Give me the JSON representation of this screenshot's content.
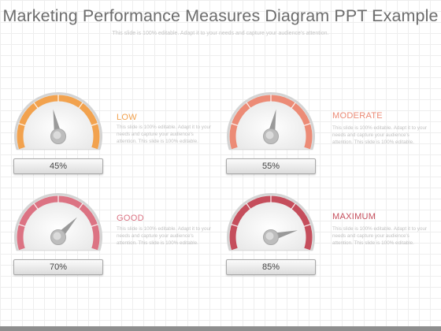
{
  "title": "Marketing Performance Measures Diagram PPT Example",
  "subtitle": "This slide is 100% editable. Adapt it to your needs and capture your audience's attention.",
  "gauges": [
    {
      "label": "LOW",
      "value": 45,
      "value_text": "45%",
      "color": "#f2a24e",
      "needle_color": "#9a9a9a",
      "description": "This slide is 100% editable. Adapt it to your needs and capture your audience's attention. This slide is 100% editable."
    },
    {
      "label": "MODERATE",
      "value": 55,
      "value_text": "55%",
      "color": "#ec8b76",
      "needle_color": "#9a9a9a",
      "description": "This slide is 100% editable. Adapt it to your needs and capture your audience's attention. This slide is 100% editable."
    },
    {
      "label": "GOOD",
      "value": 70,
      "value_text": "70%",
      "color": "#dc7383",
      "needle_color": "#9a9a9a",
      "description": "This slide is 100% editable. Adapt it to your needs and capture your audience's attention. This slide is 100% editable."
    },
    {
      "label": "MAXIMUM",
      "value": 85,
      "value_text": "85%",
      "color": "#c54e5c",
      "needle_color": "#9a9a9a",
      "description": "This slide is 100% editable. Adapt it to your needs and capture your audience's attention. This slide is 100% editable."
    }
  ]
}
